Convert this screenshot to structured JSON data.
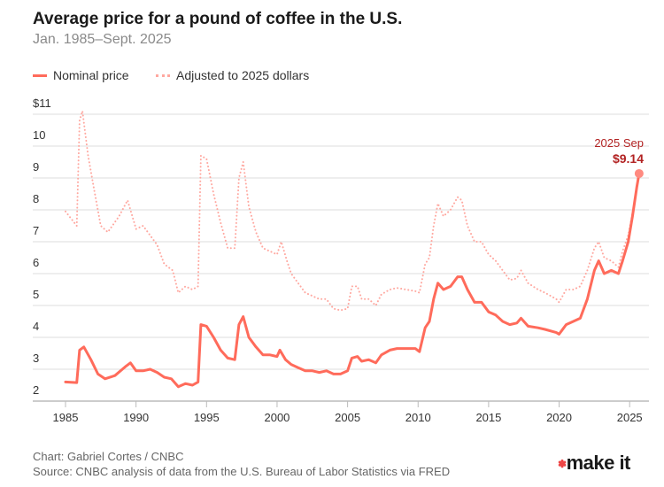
{
  "chart_data": {
    "type": "line",
    "title": "Average price for a pound of coffee in the U.S.",
    "subtitle": "Jan. 1985–Sept. 2025",
    "xlim": [
      1985,
      2025.8
    ],
    "ylim": [
      2,
      11
    ],
    "x_ticks": [
      "1985",
      "1990",
      "1995",
      "2000",
      "2005",
      "2010",
      "2015",
      "2020",
      "2025"
    ],
    "y_ticks": [
      {
        "v": 11,
        "label": "$11"
      },
      {
        "v": 10,
        "label": "10"
      },
      {
        "v": 9,
        "label": "9"
      },
      {
        "v": 8,
        "label": "8"
      },
      {
        "v": 7,
        "label": "7"
      },
      {
        "v": 6,
        "label": "6"
      },
      {
        "v": 5,
        "label": "5"
      },
      {
        "v": 4,
        "label": "4"
      },
      {
        "v": 3,
        "label": "3"
      },
      {
        "v": 2,
        "label": "2"
      }
    ],
    "grid": true,
    "legend_placement": "top-left",
    "series": [
      {
        "name": "Nominal price",
        "color": "#ff6b5b",
        "style": "solid",
        "points": [
          [
            1985.0,
            2.6
          ],
          [
            1985.8,
            2.58
          ],
          [
            1986.0,
            3.6
          ],
          [
            1986.3,
            3.7
          ],
          [
            1986.8,
            3.3
          ],
          [
            1987.3,
            2.85
          ],
          [
            1987.8,
            2.7
          ],
          [
            1988.5,
            2.8
          ],
          [
            1989.3,
            3.1
          ],
          [
            1989.6,
            3.2
          ],
          [
            1990,
            2.95
          ],
          [
            1990.5,
            2.95
          ],
          [
            1991,
            3.0
          ],
          [
            1991.5,
            2.9
          ],
          [
            1992,
            2.75
          ],
          [
            1992.5,
            2.7
          ],
          [
            1993,
            2.45
          ],
          [
            1993.5,
            2.55
          ],
          [
            1994,
            2.5
          ],
          [
            1994.4,
            2.6
          ],
          [
            1994.6,
            4.4
          ],
          [
            1995,
            4.35
          ],
          [
            1995.5,
            4.0
          ],
          [
            1996,
            3.6
          ],
          [
            1996.5,
            3.35
          ],
          [
            1997,
            3.3
          ],
          [
            1997.3,
            4.4
          ],
          [
            1997.6,
            4.65
          ],
          [
            1998,
            4.0
          ],
          [
            1998.5,
            3.7
          ],
          [
            1999,
            3.45
          ],
          [
            1999.5,
            3.45
          ],
          [
            2000,
            3.4
          ],
          [
            2000.2,
            3.6
          ],
          [
            2000.6,
            3.3
          ],
          [
            2001,
            3.15
          ],
          [
            2001.5,
            3.05
          ],
          [
            2002,
            2.95
          ],
          [
            2002.5,
            2.95
          ],
          [
            2003,
            2.9
          ],
          [
            2003.5,
            2.95
          ],
          [
            2004,
            2.85
          ],
          [
            2004.5,
            2.85
          ],
          [
            2005,
            2.95
          ],
          [
            2005.3,
            3.35
          ],
          [
            2005.7,
            3.4
          ],
          [
            2006,
            3.25
          ],
          [
            2006.5,
            3.3
          ],
          [
            2007,
            3.2
          ],
          [
            2007.4,
            3.45
          ],
          [
            2008,
            3.6
          ],
          [
            2008.5,
            3.65
          ],
          [
            2009.8,
            3.65
          ],
          [
            2010.1,
            3.55
          ],
          [
            2010.5,
            4.3
          ],
          [
            2010.8,
            4.5
          ],
          [
            2011.1,
            5.2
          ],
          [
            2011.4,
            5.7
          ],
          [
            2011.8,
            5.5
          ],
          [
            2012.3,
            5.6
          ],
          [
            2012.8,
            5.9
          ],
          [
            2013.1,
            5.9
          ],
          [
            2013.5,
            5.5
          ],
          [
            2014,
            5.1
          ],
          [
            2014.5,
            5.1
          ],
          [
            2015,
            4.8
          ],
          [
            2015.5,
            4.7
          ],
          [
            2016,
            4.5
          ],
          [
            2016.5,
            4.4
          ],
          [
            2017,
            4.45
          ],
          [
            2017.3,
            4.6
          ],
          [
            2017.8,
            4.35
          ],
          [
            2018.5,
            4.3
          ],
          [
            2019,
            4.25
          ],
          [
            2019.8,
            4.15
          ],
          [
            2020,
            4.1
          ],
          [
            2020.5,
            4.4
          ],
          [
            2021,
            4.5
          ],
          [
            2021.5,
            4.6
          ],
          [
            2022,
            5.2
          ],
          [
            2022.5,
            6.1
          ],
          [
            2022.8,
            6.4
          ],
          [
            2023.2,
            6.0
          ],
          [
            2023.7,
            6.1
          ],
          [
            2024.2,
            6.0
          ],
          [
            2024.5,
            6.4
          ],
          [
            2024.9,
            7.0
          ],
          [
            2025.2,
            7.8
          ],
          [
            2025.5,
            8.7
          ],
          [
            2025.67,
            9.14
          ]
        ]
      },
      {
        "name": "Adjusted to 2025 dollars",
        "color": "#ffa8a0",
        "style": "dotted",
        "points": [
          [
            1985.0,
            7.95
          ],
          [
            1985.8,
            7.5
          ],
          [
            1986.0,
            10.8
          ],
          [
            1986.2,
            11.1
          ],
          [
            1986.6,
            9.7
          ],
          [
            1987,
            8.7
          ],
          [
            1987.5,
            7.5
          ],
          [
            1988,
            7.3
          ],
          [
            1988.8,
            7.8
          ],
          [
            1989.4,
            8.3
          ],
          [
            1990,
            7.4
          ],
          [
            1990.5,
            7.5
          ],
          [
            1991,
            7.2
          ],
          [
            1991.5,
            6.9
          ],
          [
            1992,
            6.3
          ],
          [
            1992.6,
            6.1
          ],
          [
            1993,
            5.4
          ],
          [
            1993.5,
            5.6
          ],
          [
            1994,
            5.5
          ],
          [
            1994.4,
            5.6
          ],
          [
            1994.6,
            9.7
          ],
          [
            1995,
            9.6
          ],
          [
            1995.5,
            8.5
          ],
          [
            1996,
            7.6
          ],
          [
            1996.5,
            6.8
          ],
          [
            1997,
            6.8
          ],
          [
            1997.3,
            9.0
          ],
          [
            1997.6,
            9.5
          ],
          [
            1998,
            8.1
          ],
          [
            1998.5,
            7.3
          ],
          [
            1999,
            6.8
          ],
          [
            1999.5,
            6.7
          ],
          [
            2000,
            6.6
          ],
          [
            2000.3,
            7.0
          ],
          [
            2000.7,
            6.4
          ],
          [
            2001,
            6.0
          ],
          [
            2001.5,
            5.7
          ],
          [
            2002,
            5.4
          ],
          [
            2002.5,
            5.3
          ],
          [
            2003,
            5.2
          ],
          [
            2003.5,
            5.2
          ],
          [
            2004,
            4.9
          ],
          [
            2004.5,
            4.85
          ],
          [
            2005,
            4.9
          ],
          [
            2005.3,
            5.6
          ],
          [
            2005.7,
            5.6
          ],
          [
            2006,
            5.2
          ],
          [
            2006.5,
            5.2
          ],
          [
            2007,
            5.0
          ],
          [
            2007.4,
            5.35
          ],
          [
            2008,
            5.5
          ],
          [
            2008.5,
            5.55
          ],
          [
            2009.8,
            5.45
          ],
          [
            2010.1,
            5.4
          ],
          [
            2010.5,
            6.3
          ],
          [
            2010.8,
            6.5
          ],
          [
            2011.1,
            7.5
          ],
          [
            2011.4,
            8.2
          ],
          [
            2011.8,
            7.8
          ],
          [
            2012.3,
            8.0
          ],
          [
            2012.8,
            8.4
          ],
          [
            2013.1,
            8.3
          ],
          [
            2013.5,
            7.5
          ],
          [
            2014,
            7.0
          ],
          [
            2014.5,
            7.0
          ],
          [
            2015,
            6.6
          ],
          [
            2015.5,
            6.4
          ],
          [
            2016,
            6.1
          ],
          [
            2016.5,
            5.8
          ],
          [
            2017,
            5.85
          ],
          [
            2017.3,
            6.1
          ],
          [
            2017.8,
            5.7
          ],
          [
            2018.5,
            5.5
          ],
          [
            2019,
            5.4
          ],
          [
            2019.8,
            5.2
          ],
          [
            2020,
            5.1
          ],
          [
            2020.5,
            5.5
          ],
          [
            2021,
            5.5
          ],
          [
            2021.5,
            5.6
          ],
          [
            2022,
            6.1
          ],
          [
            2022.5,
            6.8
          ],
          [
            2022.8,
            7.0
          ],
          [
            2023.2,
            6.5
          ],
          [
            2023.7,
            6.4
          ],
          [
            2024.2,
            6.2
          ],
          [
            2024.5,
            6.7
          ],
          [
            2024.9,
            7.2
          ],
          [
            2025.2,
            7.9
          ],
          [
            2025.5,
            8.7
          ],
          [
            2025.67,
            9.14
          ]
        ]
      }
    ],
    "annotation": {
      "label": "2025 Sep",
      "value_label": "$9.14",
      "x": 2025.67,
      "y": 9.14,
      "color": "#b22222"
    }
  },
  "footer": {
    "credit": "Chart: Gabriel Cortes / CNBC",
    "source": "Source: CNBC analysis of data from the U.S. Bureau of Labor Statistics via FRED"
  },
  "logo": {
    "text": "make it",
    "brand": "CNBC"
  }
}
